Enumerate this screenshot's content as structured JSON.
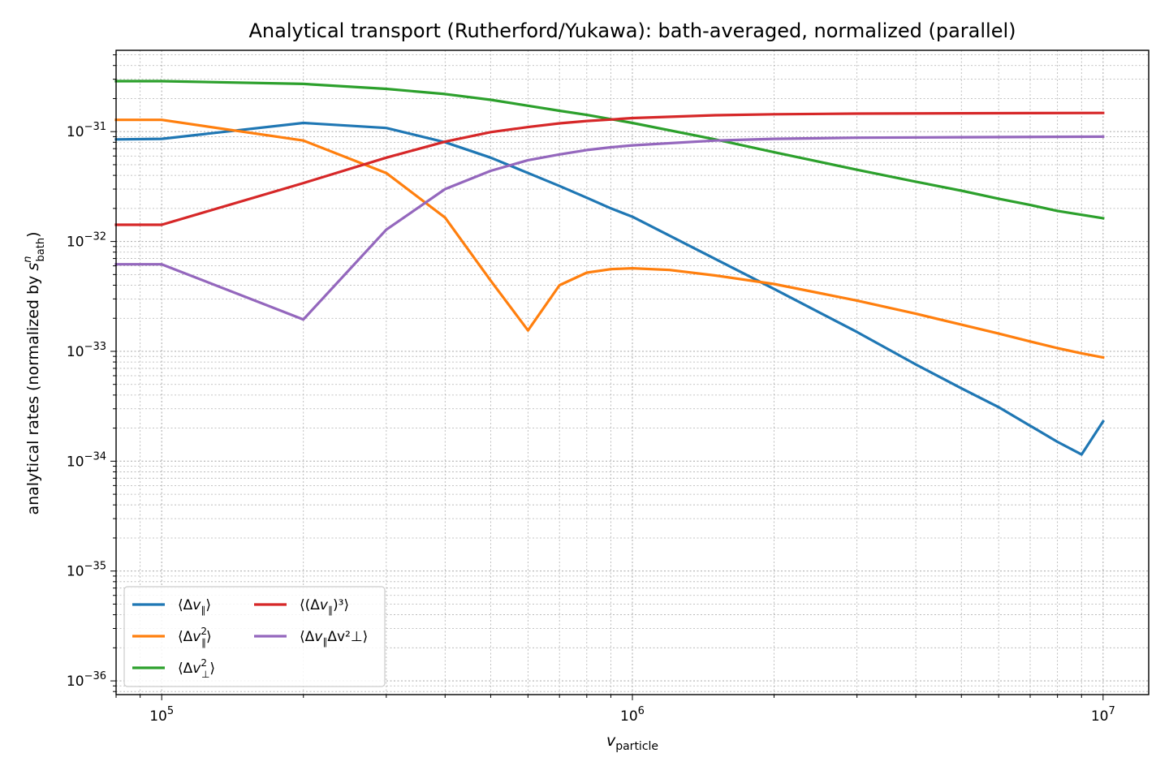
{
  "chart_data": {
    "type": "line",
    "title": "Analytical transport (Rutherford/Yukawa): bath-averaged, normalized (parallel)",
    "xlabel": "v_particle",
    "xlabel_main": "v",
    "xlabel_sub": "particle",
    "ylabel": "analytical rates (normalized by s^n_bath)",
    "ylabel_main": "analytical rates (normalized by ",
    "ylabel_s": "s",
    "ylabel_sup": "n",
    "ylabel_sub": "bath",
    "ylabel_close": ")",
    "xscale": "log",
    "yscale": "log",
    "xlim": [
      80000,
      12500000
    ],
    "ylim": [
      7.5e-37,
      5.5e-31
    ],
    "grid": true,
    "legend_position": "lower-left",
    "legend_columns": 2,
    "x_ticks": [
      {
        "value": 100000,
        "label_base": "10",
        "label_exp": "5"
      },
      {
        "value": 1000000,
        "label_base": "10",
        "label_exp": "6"
      },
      {
        "value": 10000000,
        "label_base": "10",
        "label_exp": "7"
      }
    ],
    "y_ticks": [
      {
        "value": 1e-36,
        "label_base": "10",
        "label_exp": "−36"
      },
      {
        "value": 1e-35,
        "label_base": "10",
        "label_exp": "−35"
      },
      {
        "value": 1e-34,
        "label_base": "10",
        "label_exp": "−34"
      },
      {
        "value": 1e-33,
        "label_base": "10",
        "label_exp": "−33"
      },
      {
        "value": 1e-32,
        "label_base": "10",
        "label_exp": "−32"
      },
      {
        "value": 1e-31,
        "label_base": "10",
        "label_exp": "−31"
      }
    ],
    "series": [
      {
        "name": "⟨Δv∥⟩",
        "color": "#1f77b4",
        "x": [
          80000,
          100000,
          200000,
          300000,
          400000,
          500000,
          600000,
          700000,
          800000,
          900000,
          1000000,
          2000000,
          3000000,
          4000000,
          5000000,
          6000000,
          7000000,
          8000000,
          9000000,
          10000000
        ],
        "y": [
          8.5e-32,
          8.6e-32,
          1.2e-31,
          1.08e-31,
          8e-32,
          5.8e-32,
          4.2e-32,
          3.2e-32,
          2.5e-32,
          2e-32,
          1.68e-32,
          3.7e-33,
          1.5e-33,
          7.6e-34,
          4.6e-34,
          3.1e-34,
          2.1e-34,
          1.5e-34,
          1.15e-34,
          2.3e-34
        ]
      },
      {
        "name": "⟨Δv²∥⟩",
        "color": "#ff7f0e",
        "x": [
          80000,
          100000,
          200000,
          300000,
          400000,
          500000,
          600000,
          700000,
          800000,
          900000,
          1000000,
          1200000,
          1500000,
          2000000,
          3000000,
          4000000,
          5000000,
          6000000,
          7000000,
          8000000,
          9000000,
          10000000
        ],
        "y": [
          1.28e-31,
          1.28e-31,
          8.3e-32,
          4.2e-32,
          1.65e-32,
          4.4e-33,
          1.55e-33,
          4e-33,
          5.2e-33,
          5.6e-33,
          5.7e-33,
          5.5e-33,
          4.9e-33,
          4.1e-33,
          2.9e-33,
          2.2e-33,
          1.75e-33,
          1.45e-33,
          1.23e-33,
          1.07e-33,
          9.6e-34,
          8.8e-34
        ]
      },
      {
        "name": "⟨Δv²⊥⟩",
        "color": "#2ca02c",
        "x": [
          80000,
          100000,
          200000,
          300000,
          400000,
          500000,
          600000,
          700000,
          800000,
          900000,
          1000000,
          1500000,
          2000000,
          3000000,
          4000000,
          5000000,
          6000000,
          7000000,
          8000000,
          9000000,
          10000000
        ],
        "y": [
          2.88e-31,
          2.88e-31,
          2.72e-31,
          2.45e-31,
          2.2e-31,
          1.95e-31,
          1.72e-31,
          1.55e-31,
          1.42e-31,
          1.3e-31,
          1.2e-31,
          8.5e-32,
          6.5e-32,
          4.5e-32,
          3.5e-32,
          2.9e-32,
          2.45e-32,
          2.15e-32,
          1.9e-32,
          1.75e-32,
          1.63e-32
        ]
      },
      {
        "name": "⟨(Δv∥)³⟩",
        "color": "#d62728",
        "x": [
          80000,
          100000,
          200000,
          300000,
          400000,
          500000,
          600000,
          700000,
          800000,
          900000,
          1000000,
          1500000,
          2000000,
          3000000,
          5000000,
          10000000
        ],
        "y": [
          1.42e-32,
          1.42e-32,
          3.4e-32,
          5.8e-32,
          8.1e-32,
          9.9e-32,
          1.1e-31,
          1.19e-31,
          1.25e-31,
          1.29e-31,
          1.33e-31,
          1.41e-31,
          1.44e-31,
          1.46e-31,
          1.47e-31,
          1.48e-31
        ]
      },
      {
        "name": "⟨Δv∥Δv²⊥⟩",
        "color": "#9467bd",
        "x": [
          80000,
          100000,
          200000,
          300000,
          400000,
          500000,
          600000,
          700000,
          800000,
          900000,
          1000000,
          1500000,
          2000000,
          3000000,
          5000000,
          10000000
        ],
        "y": [
          6.2e-33,
          6.2e-33,
          1.95e-33,
          1.28e-32,
          3e-32,
          4.4e-32,
          5.5e-32,
          6.2e-32,
          6.8e-32,
          7.2e-32,
          7.5e-32,
          8.3e-32,
          8.6e-32,
          8.8e-32,
          8.9e-32,
          9e-32
        ]
      }
    ],
    "legend": [
      {
        "series": 0,
        "label_prefix": "⟨Δ",
        "label_v": "v",
        "label_sup": "",
        "label_sub": "∥",
        "label_rest": "⟩"
      },
      {
        "series": 1,
        "label_prefix": "⟨Δ",
        "label_v": "v",
        "label_sup": "2",
        "label_sub": "∥",
        "label_rest": "⟩"
      },
      {
        "series": 2,
        "label_prefix": "⟨Δ",
        "label_v": "v",
        "label_sup": "2",
        "label_sub": "⊥",
        "label_rest": "⟩"
      },
      {
        "series": 3,
        "label_prefix": "⟨(Δ",
        "label_v": "v",
        "label_sup": "",
        "label_sub": "∥",
        "label_rest": ")³⟩"
      },
      {
        "series": 4,
        "label_prefix": "⟨Δ",
        "label_v": "v",
        "label_sup": "",
        "label_sub": "∥",
        "label_rest": "Δv²⊥⟩"
      }
    ]
  }
}
